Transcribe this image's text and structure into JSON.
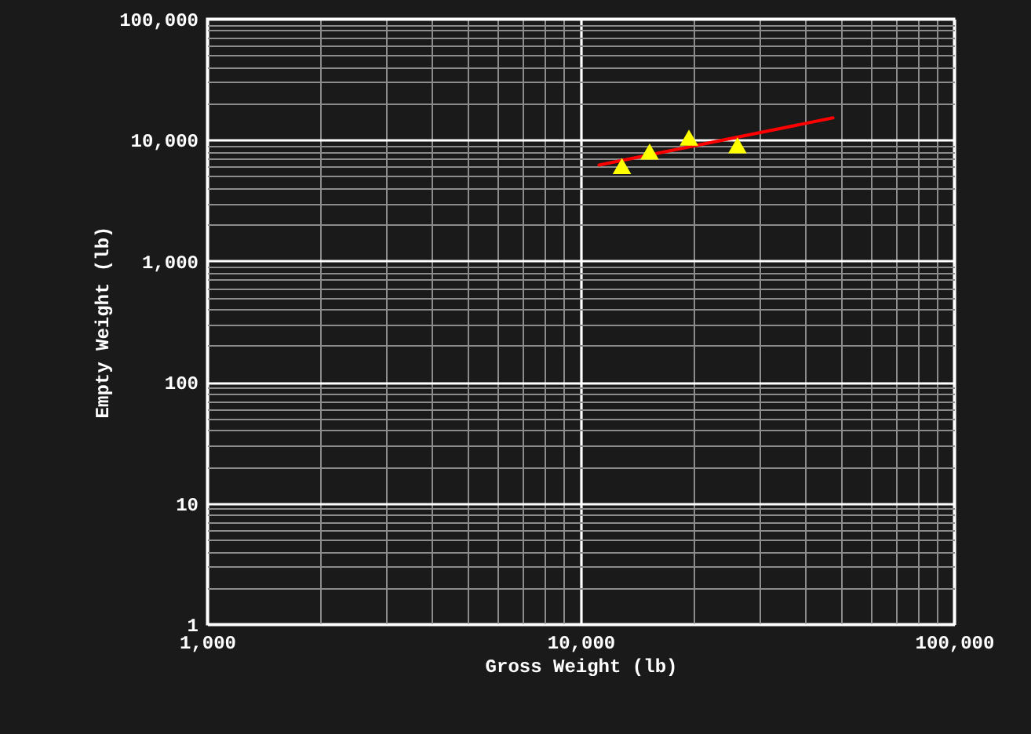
{
  "chart_data": {
    "type": "scatter",
    "xlabel": "Gross Weight (lb)",
    "ylabel": "Empty Weight (lb)",
    "log": "xy",
    "grid": true,
    "xlim": [
      1000,
      100000
    ],
    "ylim": [
      1,
      100000
    ],
    "xticks": [
      {
        "value": 1000,
        "label": "1,000"
      },
      {
        "value": 2000,
        "label": null
      },
      {
        "value": 3000,
        "label": null
      },
      {
        "value": 4000,
        "label": null
      },
      {
        "value": 5000,
        "label": null
      },
      {
        "value": 6000,
        "label": null
      },
      {
        "value": 7000,
        "label": null
      },
      {
        "value": 8000,
        "label": null
      },
      {
        "value": 9000,
        "label": null
      },
      {
        "value": 10000,
        "label": "10,000"
      },
      {
        "value": 20000,
        "label": null
      },
      {
        "value": 30000,
        "label": null
      },
      {
        "value": 40000,
        "label": null
      },
      {
        "value": 50000,
        "label": null
      },
      {
        "value": 60000,
        "label": null
      },
      {
        "value": 70000,
        "label": null
      },
      {
        "value": 80000,
        "label": null
      },
      {
        "value": 90000,
        "label": null
      },
      {
        "value": 100000,
        "label": "100,000"
      }
    ],
    "yticks": [
      1,
      {
        "value": 2,
        "label": null
      },
      {
        "value": 3,
        "label": null
      },
      {
        "value": 4,
        "label": null
      },
      {
        "value": 5,
        "label": null
      },
      {
        "value": 6,
        "label": null
      },
      {
        "value": 7,
        "label": null
      },
      {
        "value": 8,
        "label": null
      },
      {
        "value": 9,
        "label": null
      },
      10,
      {
        "value": 20,
        "label": null
      },
      {
        "value": 30,
        "label": null
      },
      {
        "value": 40,
        "label": null
      },
      {
        "value": 50,
        "label": null
      },
      {
        "value": 60,
        "label": null
      },
      {
        "value": 70,
        "label": null
      },
      {
        "value": 80,
        "label": null
      },
      {
        "value": 90,
        "label": null
      },
      100,
      {
        "value": 200,
        "label": null
      },
      {
        "value": 300,
        "label": null
      },
      {
        "value": 400,
        "label": null
      },
      {
        "value": 500,
        "label": null
      },
      {
        "value": 600,
        "label": null
      },
      {
        "value": 700,
        "label": null
      },
      {
        "value": 800,
        "label": null
      },
      {
        "value": 900,
        "label": null
      },
      {
        "value": 1000,
        "label": "1,000"
      },
      {
        "value": 2000,
        "label": null
      },
      {
        "value": 3000,
        "label": null
      },
      {
        "value": 4000,
        "label": null
      },
      {
        "value": 5000,
        "label": null
      },
      {
        "value": 6000,
        "label": null
      },
      {
        "value": 7000,
        "label": null
      },
      {
        "value": 8000,
        "label": null
      },
      {
        "value": 9000,
        "label": null
      },
      {
        "value": 10000,
        "label": "10,000"
      },
      {
        "value": 20000,
        "label": null
      },
      {
        "value": 30000,
        "label": null
      },
      {
        "value": 40000,
        "label": null
      },
      {
        "value": 50000,
        "label": null
      },
      {
        "value": 60000,
        "label": null
      },
      {
        "value": 70000,
        "label": null
      },
      {
        "value": 80000,
        "label": null
      },
      {
        "value": 90000,
        "label": null
      },
      {
        "value": 100000,
        "label": "100,000"
      }
    ],
    "series": [
      {
        "marker": "triangle",
        "color": "#ffff00",
        "x": [
          12900,
          15300,
          19500,
          26300
        ],
        "values": [
          6000,
          7900,
          10300,
          8900
        ]
      },
      {
        "type": "line",
        "color": "#ff0000",
        "x": [
          11200,
          47400
        ],
        "values": [
          6200,
          15200
        ]
      }
    ]
  }
}
